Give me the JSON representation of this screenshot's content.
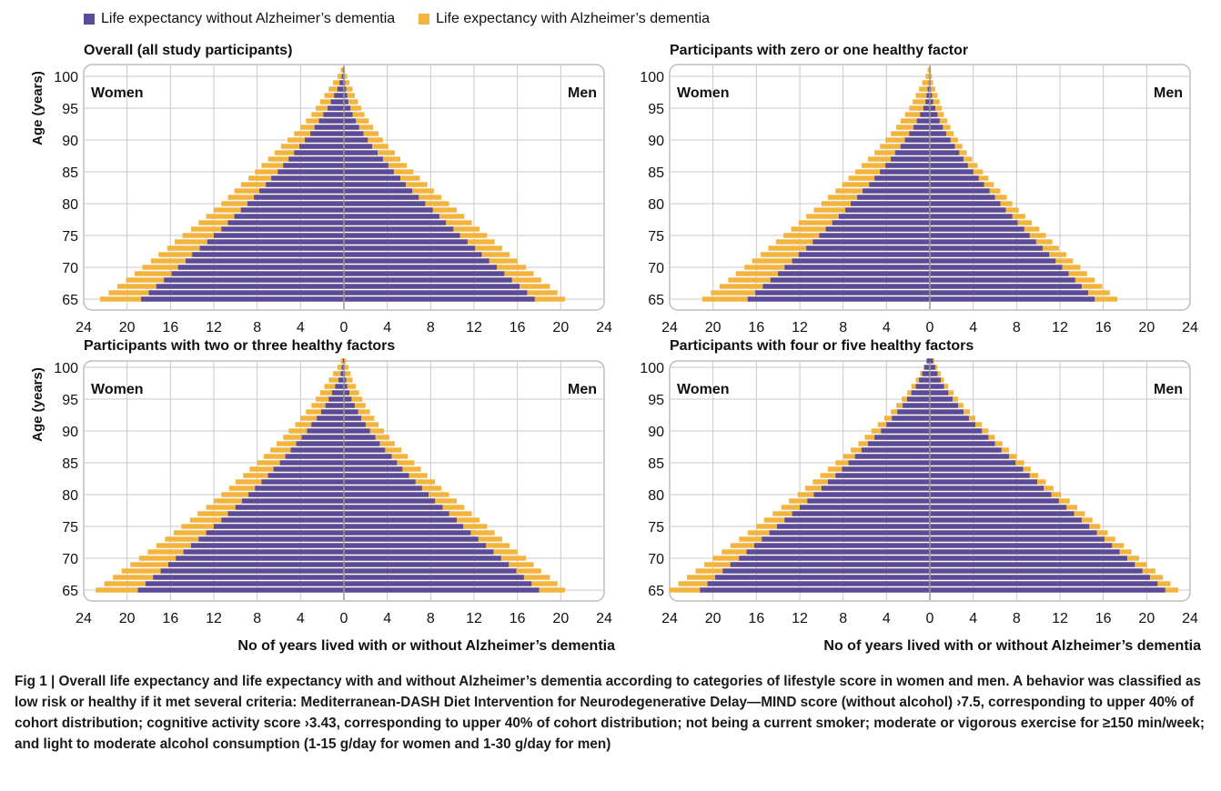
{
  "legend": {
    "without": "Life expectancy without Alzheimer’s dementia",
    "with": "Life expectancy with Alzheimer’s dementia"
  },
  "colors": {
    "without": "#5b4b9b",
    "with": "#f3b43e",
    "grid": "#c9c9c9",
    "frame": "#bdbdbd",
    "zero": "#9a9a9a"
  },
  "caption": {
    "label": "Fig 1 |",
    "text": " Overall life expectancy and life expectancy with and without Alzheimer’s dementia according to categories of lifestyle score in women and men. A behavior was classified as low risk or healthy if it met several criteria: Mediterranean-DASH Diet Intervention for Neurodegenerative Delay—MIND score (without alcohol) ›7.5, corresponding to upper 40% of cohort distribution; cognitive activity score ›3.43, corresponding to upper 40% of cohort distribution; not being a current smoker; moderate or vigorous exercise for ≥150 min/week; and light to moderate alcohol consumption (1-15 g/day for women and 1-30 g/day for men)"
  },
  "chart_data": [
    {
      "type": "bar",
      "title": "Overall (all study participants)",
      "ylabel": "Age (years)",
      "xlabel": "No of years lived with or without Alzheimer’s dementia",
      "left_label": "Women",
      "right_label": "Men",
      "xlim": [
        -24,
        24
      ],
      "xticks": [
        "24",
        "20",
        "16",
        "12",
        "8",
        "4",
        "0",
        "4",
        "8",
        "12",
        "16",
        "20",
        "24"
      ],
      "yticks": [
        "65",
        "70",
        "75",
        "80",
        "85",
        "90",
        "95",
        "100"
      ],
      "ages": [
        65,
        66,
        67,
        68,
        69,
        70,
        71,
        72,
        73,
        74,
        75,
        76,
        77,
        78,
        79,
        80,
        81,
        82,
        83,
        84,
        85,
        86,
        87,
        88,
        89,
        90,
        91,
        92,
        93,
        94,
        95,
        96,
        97,
        98,
        99,
        100,
        101
      ],
      "women_without": [
        18.7,
        18.0,
        17.3,
        16.6,
        15.9,
        15.3,
        14.6,
        14.0,
        13.3,
        12.6,
        12.0,
        11.3,
        10.7,
        10.1,
        9.5,
        8.9,
        8.3,
        7.8,
        7.2,
        6.7,
        6.1,
        5.6,
        5.1,
        4.6,
        4.1,
        3.6,
        3.1,
        2.7,
        2.3,
        1.9,
        1.5,
        1.2,
        0.9,
        0.6,
        0.4,
        0.2,
        0.1
      ],
      "women_total": [
        22.5,
        21.7,
        20.9,
        20.1,
        19.3,
        18.6,
        17.8,
        17.1,
        16.3,
        15.6,
        14.9,
        14.1,
        13.4,
        12.7,
        12.0,
        11.3,
        10.7,
        10.1,
        9.5,
        8.8,
        8.2,
        7.6,
        7.0,
        6.4,
        5.8,
        5.2,
        4.6,
        4.0,
        3.5,
        3.0,
        2.6,
        2.2,
        1.8,
        1.4,
        1.0,
        0.6,
        0.3
      ],
      "men_without": [
        17.6,
        16.9,
        16.2,
        15.5,
        14.8,
        14.1,
        13.4,
        12.7,
        12.1,
        11.4,
        10.7,
        10.1,
        9.4,
        8.8,
        8.2,
        7.5,
        6.9,
        6.3,
        5.7,
        5.2,
        4.6,
        4.1,
        3.6,
        3.1,
        2.6,
        2.2,
        1.8,
        1.4,
        1.1,
        0.8,
        0.6,
        0.4,
        0.3,
        0.2,
        0.1,
        0.05,
        0.02
      ],
      "men_total": [
        20.4,
        19.7,
        19.0,
        18.2,
        17.5,
        16.8,
        16.0,
        15.3,
        14.6,
        13.9,
        13.2,
        12.5,
        11.8,
        11.1,
        10.4,
        9.7,
        9.0,
        8.3,
        7.7,
        7.0,
        6.4,
        5.8,
        5.2,
        4.7,
        4.1,
        3.6,
        3.2,
        2.7,
        2.3,
        1.9,
        1.6,
        1.3,
        1.0,
        0.8,
        0.5,
        0.3,
        0.1
      ]
    },
    {
      "type": "bar",
      "title": "Participants with zero or one healthy factor",
      "ylabel": "",
      "xlabel": "No of years lived with or without Alzheimer’s dementia",
      "left_label": "Women",
      "right_label": "Men",
      "xlim": [
        -24,
        24
      ],
      "xticks": [
        "24",
        "20",
        "16",
        "12",
        "8",
        "4",
        "0",
        "4",
        "8",
        "12",
        "16",
        "20",
        "24"
      ],
      "yticks": [
        "65",
        "70",
        "75",
        "80",
        "85",
        "90",
        "95",
        "100"
      ],
      "ages": [
        65,
        66,
        67,
        68,
        69,
        70,
        71,
        72,
        73,
        74,
        75,
        76,
        77,
        78,
        79,
        80,
        81,
        82,
        83,
        84,
        85,
        86,
        87,
        88,
        89,
        90,
        91,
        92,
        93,
        94,
        95,
        96,
        97,
        98,
        99,
        100,
        101
      ],
      "women_without": [
        16.8,
        16.1,
        15.4,
        14.7,
        14.0,
        13.4,
        12.7,
        12.1,
        11.4,
        10.8,
        10.2,
        9.6,
        9.0,
        8.4,
        7.8,
        7.3,
        6.7,
        6.2,
        5.6,
        5.1,
        4.6,
        4.1,
        3.6,
        3.2,
        2.7,
        2.3,
        1.9,
        1.5,
        1.2,
        0.9,
        0.6,
        0.4,
        0.3,
        0.2,
        0.1,
        0.05,
        0.02
      ],
      "women_total": [
        21.0,
        20.2,
        19.4,
        18.6,
        17.9,
        17.1,
        16.4,
        15.6,
        14.9,
        14.2,
        13.5,
        12.8,
        12.1,
        11.4,
        10.7,
        10.0,
        9.4,
        8.7,
        8.1,
        7.5,
        6.9,
        6.3,
        5.7,
        5.1,
        4.6,
        4.1,
        3.6,
        3.1,
        2.7,
        2.3,
        1.9,
        1.6,
        1.3,
        1.0,
        0.7,
        0.4,
        0.2
      ],
      "men_without": [
        15.2,
        14.6,
        14.0,
        13.4,
        12.8,
        12.2,
        11.6,
        11.0,
        10.4,
        9.8,
        9.2,
        8.7,
        8.1,
        7.6,
        7.0,
        6.5,
        6.0,
        5.5,
        5.0,
        4.5,
        4.0,
        3.5,
        3.1,
        2.7,
        2.3,
        1.9,
        1.5,
        1.2,
        0.9,
        0.7,
        0.5,
        0.3,
        0.2,
        0.1,
        0.05,
        0.02,
        0.01
      ],
      "men_total": [
        17.3,
        16.6,
        15.9,
        15.2,
        14.5,
        13.9,
        13.2,
        12.6,
        11.9,
        11.3,
        10.7,
        10.1,
        9.4,
        8.8,
        8.2,
        7.6,
        7.1,
        6.5,
        5.9,
        5.4,
        4.9,
        4.4,
        3.9,
        3.4,
        3.0,
        2.6,
        2.2,
        1.9,
        1.6,
        1.3,
        1.1,
        0.9,
        0.7,
        0.5,
        0.3,
        0.2,
        0.1
      ]
    },
    {
      "type": "bar",
      "title": "Participants with two or three healthy factors",
      "ylabel": "Age (years)",
      "xlabel": "No of years lived with or without Alzheimer’s dementia",
      "left_label": "Women",
      "right_label": "Men",
      "xlim": [
        -24,
        24
      ],
      "xticks": [
        "24",
        "20",
        "16",
        "12",
        "8",
        "4",
        "0",
        "4",
        "8",
        "12",
        "16",
        "20",
        "24"
      ],
      "yticks": [
        "65",
        "70",
        "75",
        "80",
        "85",
        "90",
        "95",
        "100"
      ],
      "ages": [
        65,
        66,
        67,
        68,
        69,
        70,
        71,
        72,
        73,
        74,
        75,
        76,
        77,
        78,
        79,
        80,
        81,
        82,
        83,
        84,
        85,
        86,
        87,
        88,
        89,
        90,
        91,
        92,
        93,
        94,
        95,
        96,
        97,
        98,
        99,
        100,
        101
      ],
      "women_without": [
        19.0,
        18.3,
        17.6,
        16.9,
        16.2,
        15.5,
        14.8,
        14.1,
        13.4,
        12.7,
        12.0,
        11.3,
        10.7,
        10.0,
        9.4,
        8.8,
        8.2,
        7.6,
        7.0,
        6.5,
        5.9,
        5.4,
        4.9,
        4.4,
        3.9,
        3.4,
        3.0,
        2.5,
        2.1,
        1.7,
        1.4,
        1.1,
        0.8,
        0.5,
        0.3,
        0.2,
        0.1
      ],
      "women_total": [
        22.9,
        22.1,
        21.3,
        20.5,
        19.7,
        18.9,
        18.1,
        17.3,
        16.5,
        15.7,
        15.0,
        14.2,
        13.5,
        12.7,
        12.0,
        11.3,
        10.6,
        10.0,
        9.3,
        8.7,
        8.0,
        7.4,
        6.8,
        6.2,
        5.6,
        5.1,
        4.5,
        4.0,
        3.5,
        3.0,
        2.6,
        2.2,
        1.8,
        1.4,
        1.0,
        0.6,
        0.3
      ],
      "men_without": [
        18.0,
        17.3,
        16.6,
        15.9,
        15.2,
        14.5,
        13.8,
        13.1,
        12.4,
        11.7,
        11.0,
        10.4,
        9.7,
        9.1,
        8.4,
        7.8,
        7.2,
        6.6,
        6.0,
        5.4,
        4.9,
        4.4,
        3.8,
        3.3,
        2.9,
        2.4,
        2.0,
        1.6,
        1.3,
        1.0,
        0.7,
        0.5,
        0.3,
        0.2,
        0.1,
        0.05,
        0.02
      ],
      "men_total": [
        20.4,
        19.7,
        19.0,
        18.2,
        17.5,
        16.8,
        16.0,
        15.3,
        14.6,
        13.9,
        13.2,
        12.5,
        11.8,
        11.1,
        10.4,
        9.7,
        9.0,
        8.4,
        7.7,
        7.1,
        6.5,
        5.9,
        5.3,
        4.7,
        4.2,
        3.7,
        3.2,
        2.8,
        2.4,
        2.0,
        1.7,
        1.4,
        1.1,
        0.8,
        0.6,
        0.4,
        0.2
      ]
    },
    {
      "type": "bar",
      "title": "Participants with four or five healthy factors",
      "ylabel": "",
      "xlabel": "No of years lived with or without Alzheimer’s dementia",
      "left_label": "Women",
      "right_label": "Men",
      "xlim": [
        -24,
        24
      ],
      "xticks": [
        "24",
        "20",
        "16",
        "12",
        "8",
        "4",
        "0",
        "4",
        "8",
        "12",
        "16",
        "20",
        "24"
      ],
      "yticks": [
        "65",
        "70",
        "75",
        "80",
        "85",
        "90",
        "95",
        "100"
      ],
      "ages": [
        65,
        66,
        67,
        68,
        69,
        70,
        71,
        72,
        73,
        74,
        75,
        76,
        77,
        78,
        79,
        80,
        81,
        82,
        83,
        84,
        85,
        86,
        87,
        88,
        89,
        90,
        91,
        92,
        93,
        94,
        95,
        96,
        97,
        98,
        99,
        100,
        101
      ],
      "women_without": [
        21.2,
        20.5,
        19.8,
        19.1,
        18.4,
        17.6,
        16.9,
        16.2,
        15.5,
        14.8,
        14.1,
        13.4,
        12.7,
        12.0,
        11.3,
        10.7,
        10.0,
        9.4,
        8.7,
        8.1,
        7.5,
        6.9,
        6.3,
        5.7,
        5.1,
        4.5,
        4.0,
        3.5,
        3.0,
        2.5,
        2.1,
        1.7,
        1.3,
        1.0,
        0.7,
        0.5,
        0.3
      ],
      "women_total": [
        24.0,
        23.2,
        22.4,
        21.6,
        20.8,
        20.0,
        19.2,
        18.4,
        17.6,
        16.8,
        16.0,
        15.3,
        14.5,
        13.7,
        13.0,
        12.2,
        11.5,
        10.8,
        10.1,
        9.4,
        8.7,
        8.0,
        7.3,
        6.6,
        6.0,
        5.4,
        4.8,
        4.2,
        3.6,
        3.1,
        2.6,
        2.1,
        1.7,
        1.3,
        0.9,
        0.6,
        0.3
      ],
      "men_without": [
        21.7,
        21.0,
        20.3,
        19.6,
        18.9,
        18.2,
        17.5,
        16.8,
        16.1,
        15.4,
        14.7,
        14.0,
        13.3,
        12.6,
        11.9,
        11.2,
        10.5,
        9.9,
        9.2,
        8.6,
        7.9,
        7.3,
        6.6,
        6.0,
        5.4,
        4.8,
        4.2,
        3.6,
        3.1,
        2.6,
        2.1,
        1.7,
        1.3,
        1.0,
        0.7,
        0.5,
        0.3
      ],
      "men_total": [
        22.9,
        22.2,
        21.5,
        20.8,
        20.0,
        19.3,
        18.6,
        17.9,
        17.1,
        16.4,
        15.7,
        15.0,
        14.3,
        13.6,
        12.9,
        12.1,
        11.4,
        10.7,
        10.0,
        9.3,
        8.7,
        8.0,
        7.3,
        6.7,
        6.0,
        5.4,
        4.8,
        4.2,
        3.7,
        3.1,
        2.6,
        2.2,
        1.7,
        1.3,
        1.0,
        0.7,
        0.4
      ]
    }
  ]
}
